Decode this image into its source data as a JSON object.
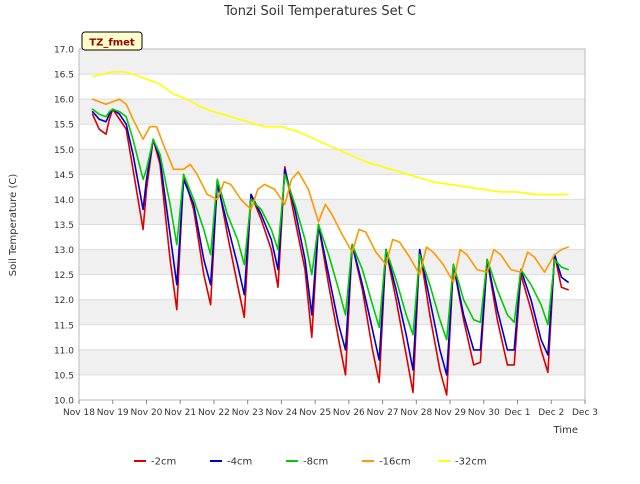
{
  "chart_data": {
    "type": "line",
    "title": "Tonzi Soil Temperatures Set C",
    "xlabel": "Time",
    "ylabel": "Soil Temperature (C)",
    "badge": "TZ_fmet",
    "xlim": [
      0,
      15
    ],
    "ylim": [
      10.0,
      17.0
    ],
    "xticks": [
      {
        "v": 0,
        "label": "Nov 18"
      },
      {
        "v": 1,
        "label": "Nov 19"
      },
      {
        "v": 2,
        "label": "Nov 20"
      },
      {
        "v": 3,
        "label": "Nov 21"
      },
      {
        "v": 4,
        "label": "Nov 22"
      },
      {
        "v": 5,
        "label": "Nov 23"
      },
      {
        "v": 6,
        "label": "Nov 24"
      },
      {
        "v": 7,
        "label": "Nov 25"
      },
      {
        "v": 8,
        "label": "Nov 26"
      },
      {
        "v": 9,
        "label": "Nov 27"
      },
      {
        "v": 10,
        "label": "Nov 28"
      },
      {
        "v": 11,
        "label": "Nov 29"
      },
      {
        "v": 12,
        "label": "Nov 30"
      },
      {
        "v": 13,
        "label": "Dec 1"
      },
      {
        "v": 14,
        "label": "Dec 2"
      },
      {
        "v": 15,
        "label": "Dec 3"
      }
    ],
    "yticks": [
      "10.0",
      "10.5",
      "11.0",
      "11.5",
      "12.0",
      "12.5",
      "13.0",
      "13.5",
      "14.0",
      "14.5",
      "15.0",
      "15.5",
      "16.0",
      "16.5",
      "17.0"
    ],
    "grid": true,
    "legend_position": "bottom",
    "series": [
      {
        "name": "-2cm",
        "color": "#dd0000",
        "x": [
          0.4,
          0.6,
          0.8,
          0.9,
          1.0,
          1.2,
          1.4,
          1.6,
          1.9,
          2.0,
          2.2,
          2.4,
          2.7,
          2.9,
          3.1,
          3.4,
          3.7,
          3.9,
          4.1,
          4.4,
          4.7,
          4.9,
          5.1,
          5.4,
          5.7,
          5.9,
          6.1,
          6.4,
          6.7,
          6.9,
          7.1,
          7.4,
          7.7,
          7.9,
          8.1,
          8.4,
          8.7,
          8.9,
          9.1,
          9.4,
          9.7,
          9.9,
          10.1,
          10.4,
          10.7,
          10.9,
          11.1,
          11.4,
          11.7,
          11.9,
          12.1,
          12.4,
          12.7,
          12.9,
          13.1,
          13.4,
          13.7,
          13.9,
          14.1,
          14.3,
          14.5
        ],
        "y": [
          15.7,
          15.4,
          15.3,
          15.6,
          15.8,
          15.6,
          15.4,
          14.6,
          13.4,
          14.2,
          15.2,
          14.7,
          12.8,
          11.8,
          14.5,
          13.8,
          12.5,
          11.9,
          14.4,
          13.3,
          12.3,
          11.65,
          14.1,
          13.6,
          13.0,
          12.25,
          14.65,
          13.6,
          12.6,
          11.25,
          13.5,
          12.3,
          11.2,
          10.5,
          13.1,
          12.2,
          11.0,
          10.35,
          13.0,
          12.0,
          10.9,
          10.15,
          13.0,
          11.7,
          10.6,
          10.1,
          12.7,
          11.6,
          10.7,
          10.75,
          12.8,
          11.6,
          10.7,
          10.7,
          12.5,
          11.8,
          11.0,
          10.55,
          12.9,
          12.25,
          12.2
        ]
      },
      {
        "name": "-4cm",
        "color": "#0000cc",
        "x": [
          0.4,
          0.6,
          0.8,
          0.9,
          1.0,
          1.2,
          1.4,
          1.6,
          1.9,
          2.0,
          2.2,
          2.4,
          2.7,
          2.9,
          3.1,
          3.4,
          3.7,
          3.9,
          4.1,
          4.4,
          4.7,
          4.9,
          5.1,
          5.4,
          5.7,
          5.9,
          6.1,
          6.4,
          6.7,
          6.9,
          7.1,
          7.4,
          7.7,
          7.9,
          8.1,
          8.4,
          8.7,
          8.9,
          9.1,
          9.4,
          9.7,
          9.9,
          10.1,
          10.4,
          10.7,
          10.9,
          11.1,
          11.4,
          11.7,
          11.9,
          12.1,
          12.4,
          12.7,
          12.9,
          13.1,
          13.4,
          13.7,
          13.9,
          14.1,
          14.3,
          14.5
        ],
        "y": [
          15.75,
          15.6,
          15.55,
          15.7,
          15.8,
          15.7,
          15.5,
          14.9,
          13.8,
          14.4,
          15.2,
          14.8,
          13.3,
          12.3,
          14.4,
          13.9,
          12.8,
          12.3,
          14.3,
          13.5,
          12.7,
          12.1,
          14.1,
          13.7,
          13.2,
          12.6,
          14.6,
          13.8,
          12.8,
          11.7,
          13.5,
          12.5,
          11.5,
          11.0,
          13.1,
          12.3,
          11.4,
          10.8,
          13.0,
          12.2,
          11.3,
          10.6,
          13.0,
          12.0,
          11.0,
          10.5,
          12.7,
          11.7,
          11.0,
          11.0,
          12.8,
          11.8,
          11.0,
          11.0,
          12.6,
          12.0,
          11.2,
          10.9,
          12.9,
          12.45,
          12.35
        ]
      },
      {
        "name": "-8cm",
        "color": "#00cc00",
        "x": [
          0.4,
          0.6,
          0.8,
          0.9,
          1.0,
          1.2,
          1.4,
          1.6,
          1.9,
          2.0,
          2.2,
          2.4,
          2.7,
          2.9,
          3.1,
          3.4,
          3.7,
          3.9,
          4.1,
          4.4,
          4.7,
          4.9,
          5.1,
          5.4,
          5.7,
          5.9,
          6.1,
          6.4,
          6.7,
          6.9,
          7.1,
          7.4,
          7.7,
          7.9,
          8.1,
          8.4,
          8.7,
          8.9,
          9.1,
          9.4,
          9.7,
          9.9,
          10.1,
          10.4,
          10.7,
          10.9,
          11.1,
          11.4,
          11.7,
          11.9,
          12.1,
          12.4,
          12.7,
          12.9,
          13.1,
          13.4,
          13.7,
          13.9,
          14.1,
          14.3,
          14.5
        ],
        "y": [
          15.8,
          15.7,
          15.65,
          15.75,
          15.8,
          15.75,
          15.65,
          15.2,
          14.4,
          14.6,
          15.2,
          14.9,
          13.9,
          13.1,
          14.5,
          14.0,
          13.4,
          12.9,
          14.4,
          13.7,
          13.2,
          12.7,
          14.0,
          13.8,
          13.4,
          13.0,
          14.5,
          13.9,
          13.2,
          12.5,
          13.5,
          12.9,
          12.2,
          11.7,
          13.1,
          12.6,
          11.9,
          11.45,
          13.0,
          12.4,
          11.7,
          11.3,
          12.9,
          12.3,
          11.6,
          11.2,
          12.7,
          12.0,
          11.6,
          11.55,
          12.8,
          12.2,
          11.7,
          11.55,
          12.6,
          12.3,
          11.9,
          11.5,
          12.8,
          12.65,
          12.6
        ]
      },
      {
        "name": "-16cm",
        "color": "#ff9900",
        "x": [
          0.4,
          0.6,
          0.8,
          1.0,
          1.2,
          1.4,
          1.6,
          1.9,
          2.1,
          2.3,
          2.5,
          2.8,
          3.1,
          3.3,
          3.5,
          3.8,
          4.1,
          4.3,
          4.5,
          4.8,
          5.1,
          5.3,
          5.5,
          5.8,
          6.1,
          6.3,
          6.5,
          6.8,
          7.1,
          7.3,
          7.5,
          7.8,
          8.1,
          8.3,
          8.5,
          8.8,
          9.1,
          9.3,
          9.5,
          9.8,
          10.1,
          10.3,
          10.5,
          10.8,
          11.1,
          11.3,
          11.5,
          11.8,
          12.1,
          12.3,
          12.5,
          12.8,
          13.1,
          13.3,
          13.5,
          13.8,
          14.1,
          14.3,
          14.5
        ],
        "y": [
          16.0,
          15.95,
          15.9,
          15.95,
          16.0,
          15.9,
          15.6,
          15.2,
          15.45,
          15.45,
          15.1,
          14.6,
          14.6,
          14.7,
          14.5,
          14.1,
          14.0,
          14.35,
          14.3,
          14.0,
          13.8,
          14.2,
          14.3,
          14.2,
          13.9,
          14.4,
          14.55,
          14.2,
          13.55,
          13.9,
          13.7,
          13.3,
          12.95,
          13.4,
          13.35,
          12.95,
          12.7,
          13.2,
          13.15,
          12.85,
          12.5,
          13.05,
          12.95,
          12.7,
          12.35,
          13.0,
          12.9,
          12.6,
          12.55,
          13.0,
          12.9,
          12.6,
          12.55,
          12.95,
          12.85,
          12.55,
          12.9,
          13.0,
          13.05
        ]
      },
      {
        "name": "-32cm",
        "color": "#ffff00",
        "x": [
          0.4,
          0.7,
          1.0,
          1.3,
          1.6,
          2.0,
          2.4,
          2.8,
          3.2,
          3.6,
          4.0,
          4.5,
          5.0,
          5.5,
          6.0,
          6.5,
          7.0,
          7.5,
          8.0,
          8.5,
          9.0,
          9.5,
          10.0,
          10.5,
          11.0,
          11.5,
          12.0,
          12.5,
          13.0,
          13.5,
          14.0,
          14.5
        ],
        "y": [
          16.45,
          16.5,
          16.55,
          16.55,
          16.5,
          16.4,
          16.3,
          16.1,
          16.0,
          15.85,
          15.75,
          15.65,
          15.55,
          15.45,
          15.45,
          15.35,
          15.2,
          15.05,
          14.9,
          14.75,
          14.65,
          14.55,
          14.45,
          14.35,
          14.3,
          14.25,
          14.2,
          14.15,
          14.15,
          14.1,
          14.1,
          14.1
        ]
      }
    ]
  }
}
